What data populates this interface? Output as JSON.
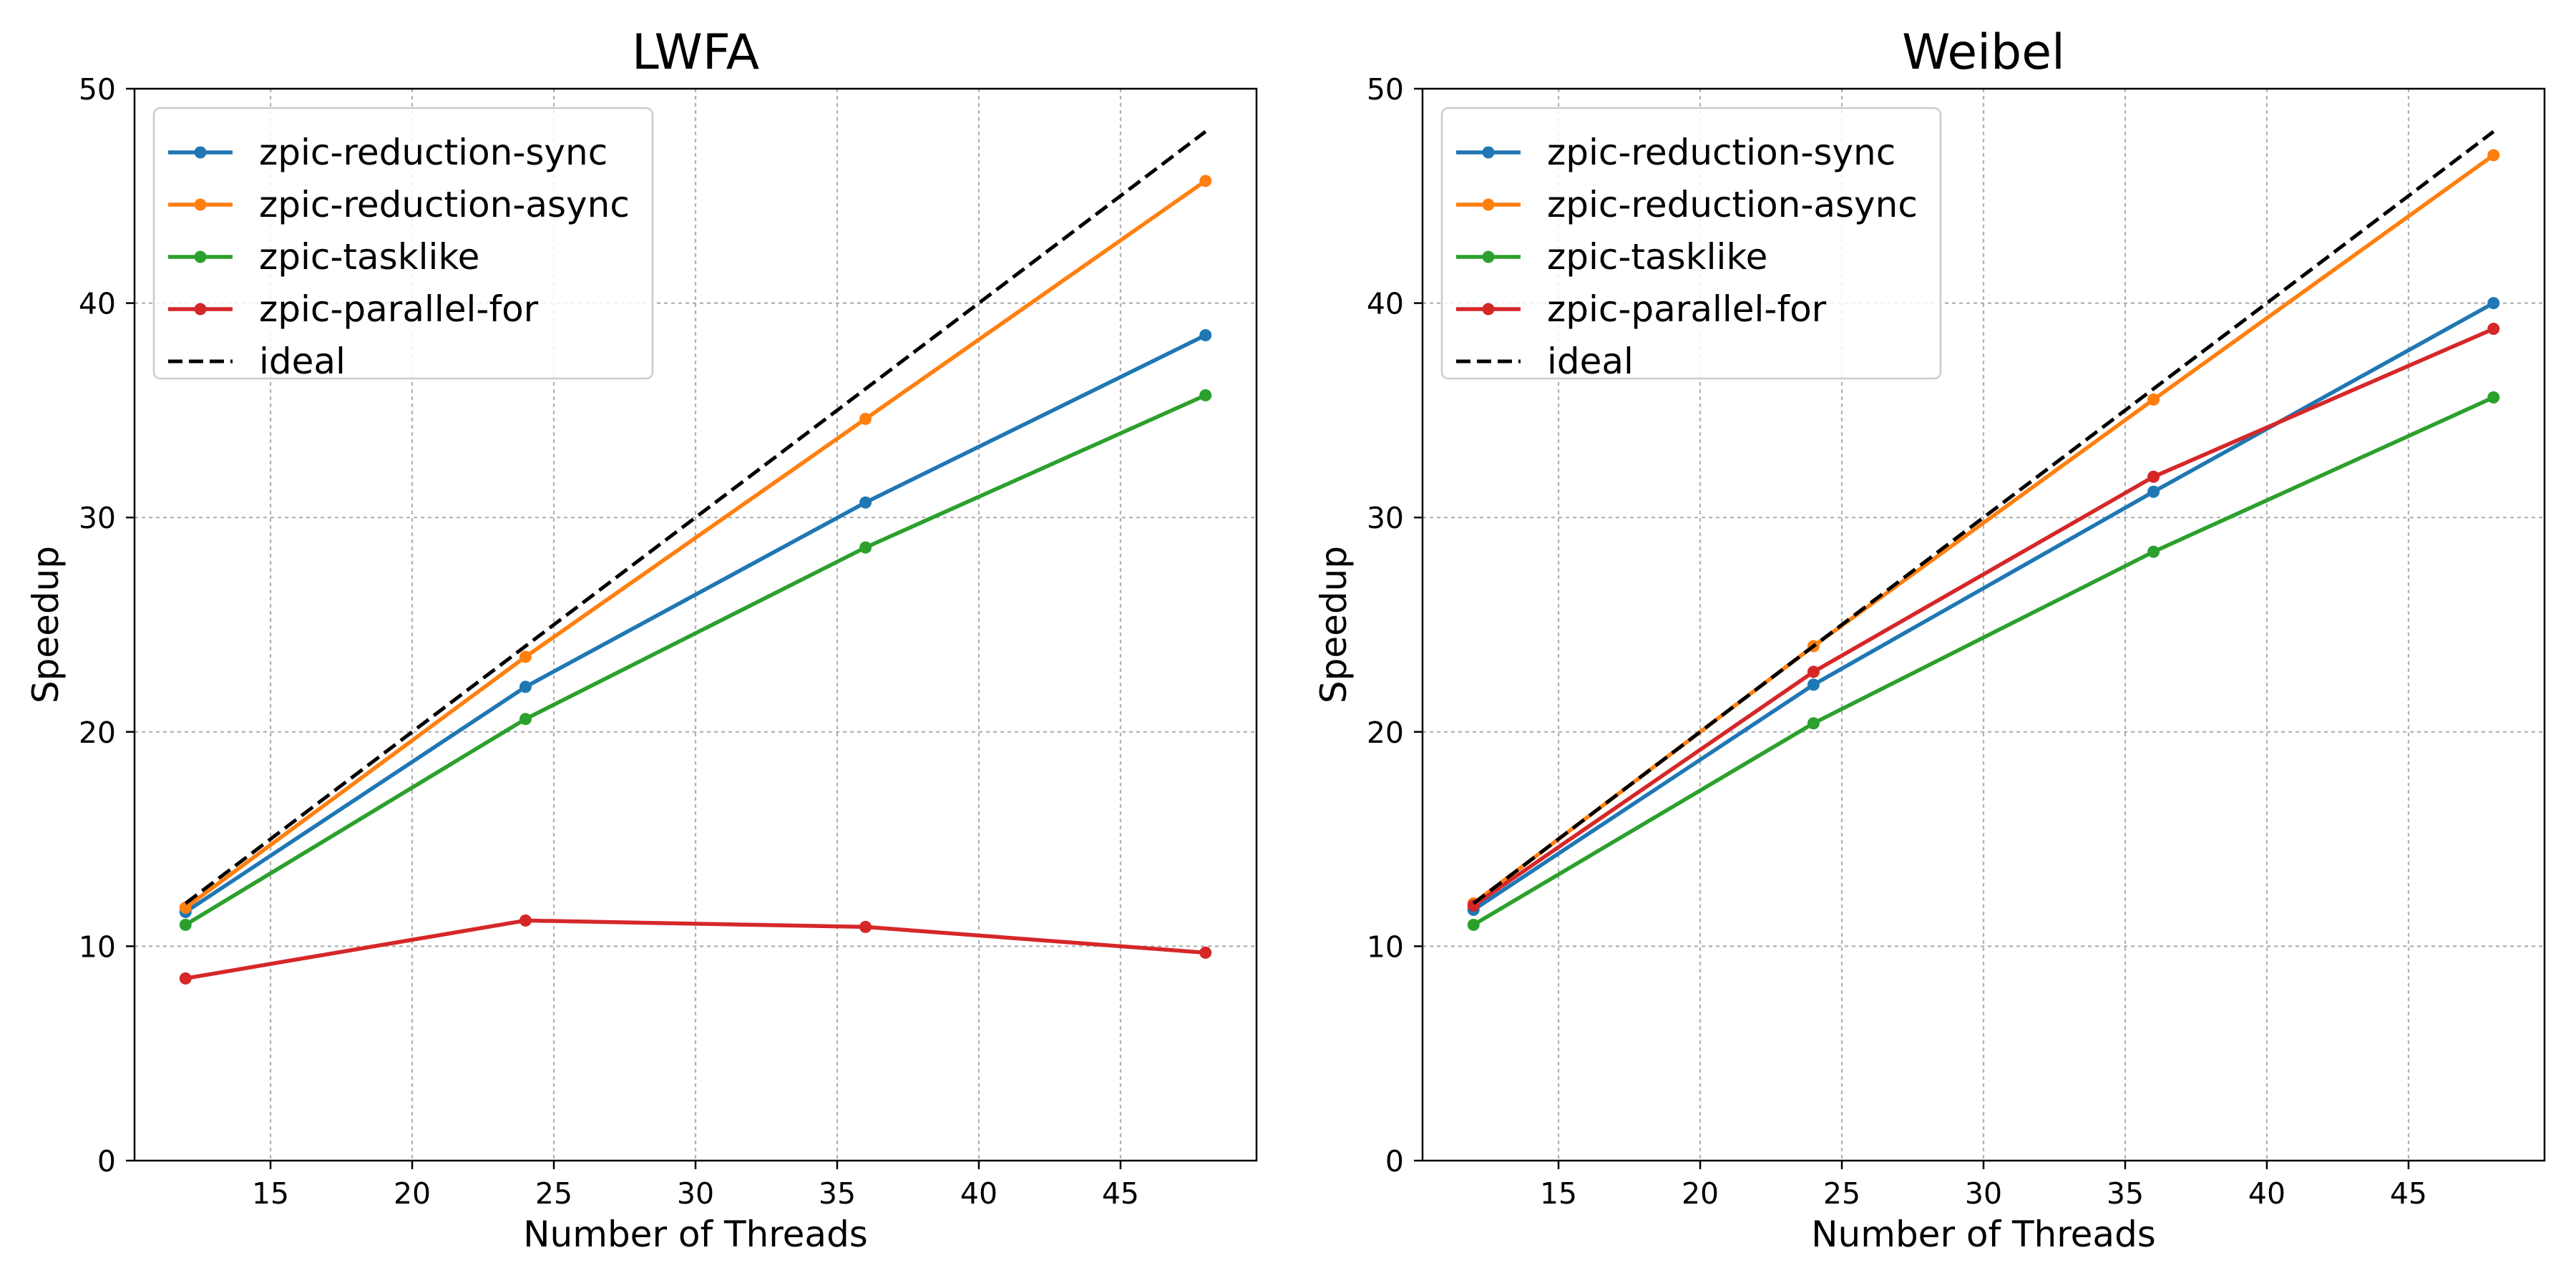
{
  "chart_data": [
    {
      "type": "line",
      "title": "LWFA",
      "xlabel": "Number of Threads",
      "ylabel": "Speedup",
      "x": [
        12,
        24,
        36,
        48
      ],
      "xlim": [
        10.2,
        49.8
      ],
      "ylim": [
        0,
        50
      ],
      "xticks": [
        15,
        20,
        25,
        30,
        35,
        40,
        45
      ],
      "yticks": [
        0,
        10,
        20,
        30,
        40,
        50
      ],
      "grid": true,
      "legend": "top-left",
      "series": [
        {
          "name": "zpic-reduction-sync",
          "color": "#1f77b4",
          "marker": true,
          "dashed": false,
          "values": [
            11.6,
            22.1,
            30.7,
            38.5
          ]
        },
        {
          "name": "zpic-reduction-async",
          "color": "#ff7f0e",
          "marker": true,
          "dashed": false,
          "values": [
            11.8,
            23.5,
            34.6,
            45.7
          ]
        },
        {
          "name": "zpic-tasklike",
          "color": "#2ca02c",
          "marker": true,
          "dashed": false,
          "values": [
            11.0,
            20.6,
            28.6,
            35.7
          ]
        },
        {
          "name": "zpic-parallel-for",
          "color": "#d62728",
          "marker": true,
          "dashed": false,
          "values": [
            8.5,
            11.2,
            10.9,
            9.7
          ]
        },
        {
          "name": "ideal",
          "color": "#000000",
          "marker": false,
          "dashed": true,
          "values": [
            12,
            24,
            36,
            48
          ]
        }
      ]
    },
    {
      "type": "line",
      "title": "Weibel",
      "xlabel": "Number of Threads",
      "ylabel": "Speedup",
      "x": [
        12,
        24,
        36,
        48
      ],
      "xlim": [
        10.2,
        49.8
      ],
      "ylim": [
        0,
        50
      ],
      "xticks": [
        15,
        20,
        25,
        30,
        35,
        40,
        45
      ],
      "yticks": [
        0,
        10,
        20,
        30,
        40,
        50
      ],
      "grid": true,
      "legend": "top-left",
      "series": [
        {
          "name": "zpic-reduction-sync",
          "color": "#1f77b4",
          "marker": true,
          "dashed": false,
          "values": [
            11.7,
            22.2,
            31.2,
            40.0
          ]
        },
        {
          "name": "zpic-reduction-async",
          "color": "#ff7f0e",
          "marker": true,
          "dashed": false,
          "values": [
            12.0,
            24.0,
            35.5,
            46.9
          ]
        },
        {
          "name": "zpic-tasklike",
          "color": "#2ca02c",
          "marker": true,
          "dashed": false,
          "values": [
            11.0,
            20.4,
            28.4,
            35.6
          ]
        },
        {
          "name": "zpic-parallel-for",
          "color": "#d62728",
          "marker": true,
          "dashed": false,
          "values": [
            11.9,
            22.8,
            31.9,
            38.8
          ]
        },
        {
          "name": "ideal",
          "color": "#000000",
          "marker": false,
          "dashed": true,
          "values": [
            12,
            24,
            36,
            48
          ]
        }
      ]
    }
  ]
}
